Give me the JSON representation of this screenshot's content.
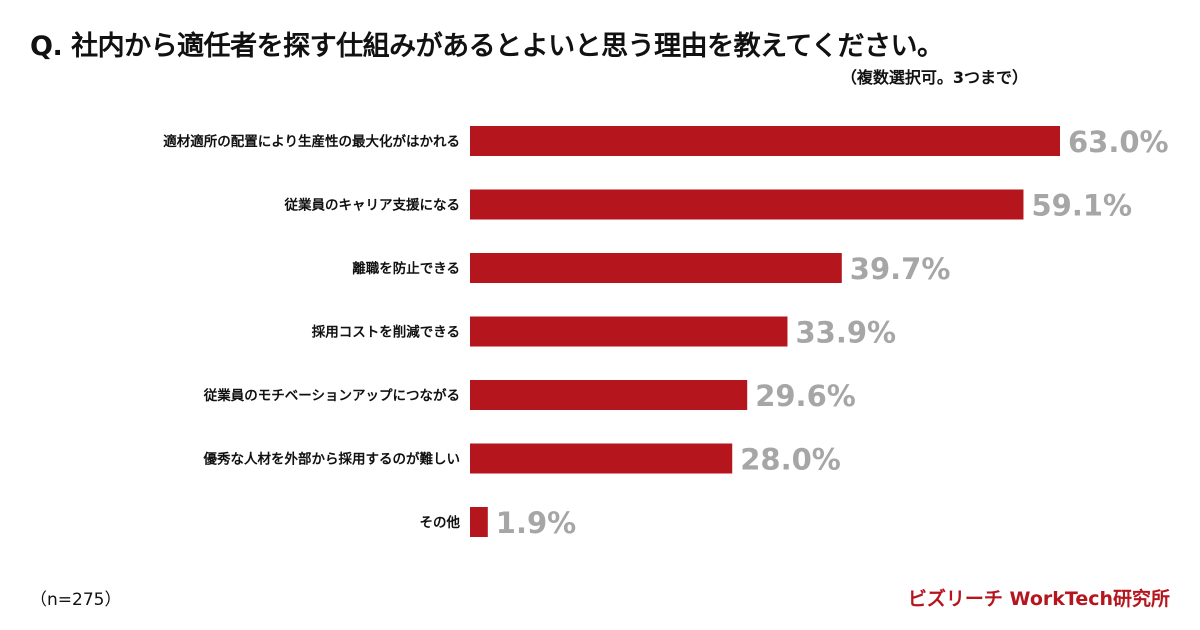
{
  "title": "Q. 社内から適任者を探す仕組みがあるとよいと思う理由を教えてください。",
  "subtitle": "（複数選択可。3つまで）",
  "sample_note": "（n=275）",
  "brand": "ビズリーチ WorkTech研究所",
  "colors": {
    "bar": "#b5161e",
    "value_label": "#a6a6a6",
    "brand": "#b5161e"
  },
  "chart_data": {
    "type": "bar",
    "orientation": "horizontal",
    "categories": [
      "適材適所の配置により生産性の最大化がはかれる",
      "従業員のキャリア支援になる",
      "離職を防止できる",
      "採用コストを削減できる",
      "従業員のモチベーションアップにつながる",
      "優秀な人材を外部から採用するのが難しい",
      "その他"
    ],
    "values": [
      63.0,
      59.1,
      39.7,
      33.9,
      29.6,
      28.0,
      1.9
    ],
    "data_labels": [
      "63.0%",
      "59.1%",
      "39.7%",
      "33.9%",
      "29.6%",
      "28.0%",
      "1.9%"
    ],
    "unit": "%",
    "grid": false,
    "legend": "none"
  }
}
